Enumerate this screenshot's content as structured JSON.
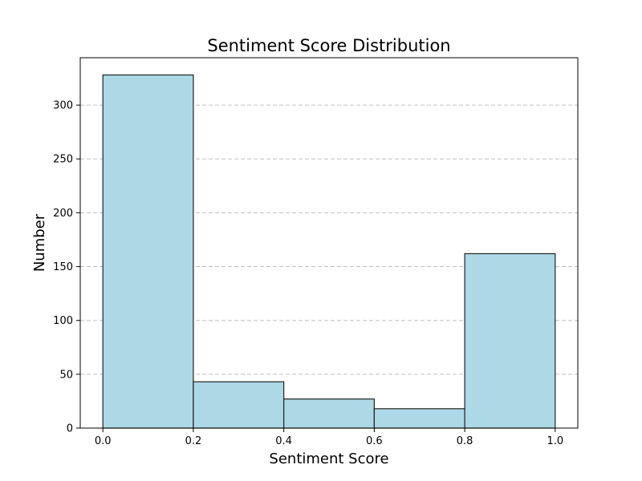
{
  "chart_data": {
    "type": "bar",
    "title": "Sentiment Score Distribution",
    "xlabel": "Sentiment Score",
    "ylabel": "Number",
    "bins": [
      {
        "start": 0.0,
        "end": 0.2,
        "value": 328
      },
      {
        "start": 0.2,
        "end": 0.4,
        "value": 43
      },
      {
        "start": 0.4,
        "end": 0.6,
        "value": 27
      },
      {
        "start": 0.6,
        "end": 0.8,
        "value": 18
      },
      {
        "start": 0.8,
        "end": 1.0,
        "value": 162
      }
    ],
    "xlim": [
      -0.05,
      1.05
    ],
    "ylim": [
      0,
      344
    ],
    "xticks": [
      0.0,
      0.2,
      0.4,
      0.6,
      0.8,
      1.0
    ],
    "xtick_labels": [
      "0.0",
      "0.2",
      "0.4",
      "0.6",
      "0.8",
      "1.0"
    ],
    "yticks": [
      0,
      50,
      100,
      150,
      200,
      250,
      300
    ],
    "ytick_labels": [
      "0",
      "50",
      "100",
      "150",
      "200",
      "250",
      "300"
    ],
    "grid": "y-dashed",
    "colors": {
      "bar_fill": "#add8e6",
      "bar_edge": "#222222",
      "grid": "#c0c0c0"
    }
  }
}
